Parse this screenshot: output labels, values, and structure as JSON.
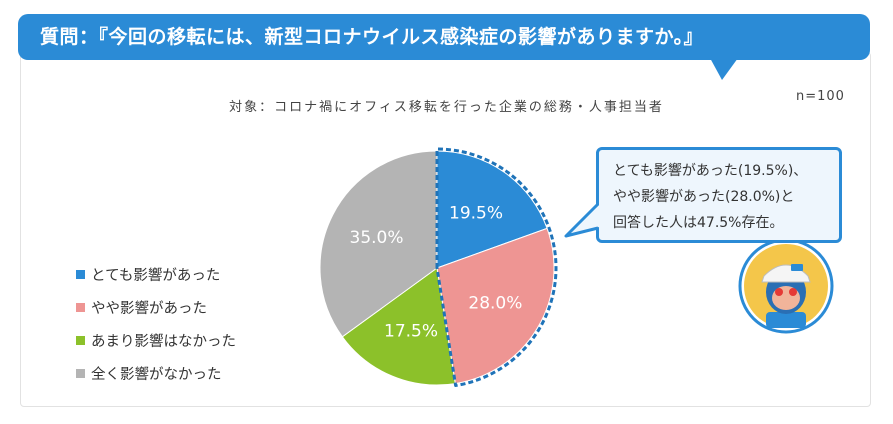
{
  "header": {
    "title": "質問：『今回の移転には、新型コロナウイルス感染症の影響がありますか。』"
  },
  "chart": {
    "subtitle": "対象：コロナ禍にオフィス移転を行った企業の総務・人事担当者",
    "sample_size": "n=100"
  },
  "chart_data": {
    "type": "pie",
    "title": "",
    "start_angle": "12 o'clock",
    "direction": "clockwise",
    "highlighted_slices": [
      "とても影響があった",
      "やや影響があった"
    ],
    "slices": [
      {
        "label": "とても影響があった",
        "value": 19.5,
        "display": "19.5%",
        "color": "#2b8bd6"
      },
      {
        "label": "やや影響があった",
        "value": 28.0,
        "display": "28.0%",
        "color": "#ee9593"
      },
      {
        "label": "あまり影響はなかった",
        "value": 17.5,
        "display": "17.5%",
        "color": "#8cc12a"
      },
      {
        "label": "全く影響がなかった",
        "value": 35.0,
        "display": "35.0%",
        "color": "#b4b4b4"
      }
    ],
    "legend_position": "left"
  },
  "callout": {
    "lines": [
      "とても影響があった(19.5%)、",
      "やや影響があった(28.0%)と",
      "回答した人は47.5%存在。"
    ],
    "border_color": "#2b8bd6"
  },
  "mascot": {
    "icon": "mascot-character-icon"
  }
}
